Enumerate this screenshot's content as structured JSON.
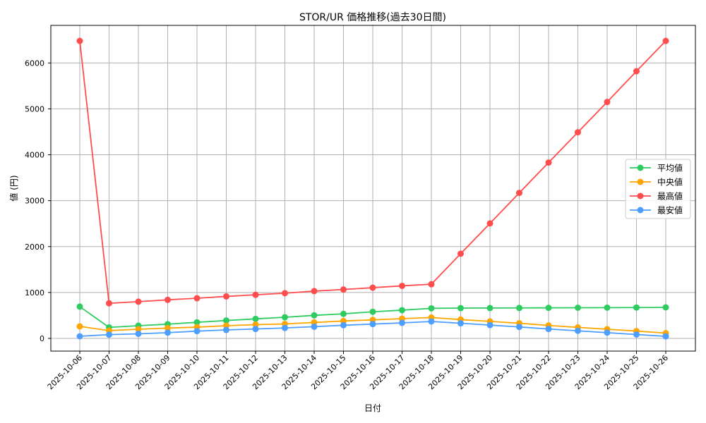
{
  "chart_data": {
    "type": "line",
    "title": "STOR/UR 価格推移(過去30日間)",
    "xlabel": "日付",
    "ylabel": "値 (円)",
    "ylim": [
      -270,
      6800
    ],
    "yticks": [
      0,
      1000,
      2000,
      3000,
      4000,
      5000,
      6000
    ],
    "grid": true,
    "legend_position": "center right",
    "categories": [
      "2025-10-06",
      "2025-10-07",
      "2025-10-08",
      "2025-10-09",
      "2025-10-10",
      "2025-10-11",
      "2025-10-12",
      "2025-10-13",
      "2025-10-14",
      "2025-10-15",
      "2025-10-16",
      "2025-10-17",
      "2025-10-18",
      "2025-10-19",
      "2025-10-20",
      "2025-10-21",
      "2025-10-22",
      "2025-10-23",
      "2025-10-24",
      "2025-10-25",
      "2025-10-26"
    ],
    "series": [
      {
        "name": "平均値",
        "color": "#2ecc60",
        "values": [
          692,
          240,
          277,
          310,
          350,
          390,
          425,
          461,
          502,
          535,
          580,
          615,
          655,
          660,
          662,
          664,
          666,
          668,
          670,
          672,
          676
        ]
      },
      {
        "name": "中央値",
        "color": "#ffa500",
        "values": [
          262,
          169,
          200,
          225,
          245,
          277,
          300,
          315,
          348,
          379,
          404,
          430,
          455,
          410,
          370,
          330,
          282,
          240,
          200,
          160,
          115
        ]
      },
      {
        "name": "最高値",
        "color": "#ff4d4d",
        "values": [
          6480,
          765,
          800,
          840,
          875,
          915,
          950,
          985,
          1030,
          1065,
          1105,
          1145,
          1180,
          1845,
          2505,
          3170,
          3830,
          4490,
          5150,
          5820,
          6480
        ]
      },
      {
        "name": "最安値",
        "color": "#4d9fff",
        "values": [
          46,
          82,
          100,
          125,
          158,
          184,
          205,
          228,
          255,
          287,
          312,
          338,
          369,
          330,
          290,
          250,
          205,
          165,
          125,
          85,
          45
        ]
      }
    ]
  }
}
